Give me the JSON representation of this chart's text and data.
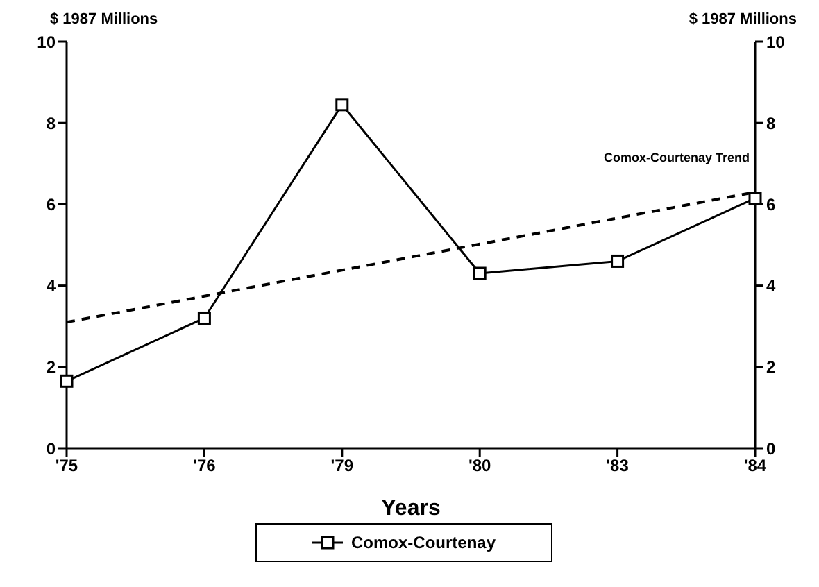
{
  "chart_data": {
    "type": "line",
    "xlabel": "Years",
    "ylabel": "$ 1987 Millions",
    "y2label": "$ 1987 Millions",
    "categories": [
      "'75",
      "'76",
      "'79",
      "'80",
      "'83",
      "'84"
    ],
    "series": [
      {
        "name": "Comox-Courtenay",
        "color": "#000000",
        "values": [
          1.65,
          3.2,
          8.45,
          4.3,
          4.6,
          6.15
        ],
        "marker": "square",
        "line_style": "solid"
      },
      {
        "name": "Comox-Courtenay Trend",
        "type": "line",
        "color": "#000000",
        "values": [
          3.1,
          3.74,
          4.38,
          5.02,
          5.66,
          6.3
        ],
        "marker": "none",
        "line_style": "dashed"
      }
    ],
    "ylim": [
      0,
      10
    ],
    "yticks": [
      0,
      2,
      4,
      6,
      8,
      10
    ],
    "y2lim": [
      0,
      10
    ],
    "y2ticks": [
      0,
      2,
      4,
      6,
      8,
      10
    ],
    "grid": false,
    "legend": "bottom"
  }
}
